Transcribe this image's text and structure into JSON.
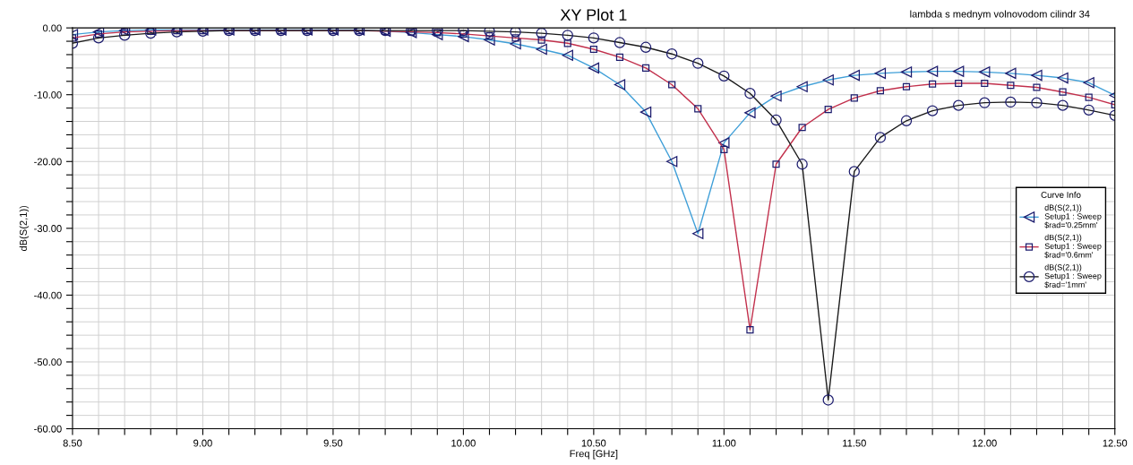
{
  "chart_data": {
    "type": "line",
    "title": "XY Plot 1",
    "xlabel": "Freq [GHz]",
    "ylabel": "dB(S(2,1))",
    "legend_title": "Curve Info",
    "legend": "right",
    "grid": true,
    "line_style": "solid",
    "annotations": [
      "lambda s mednym volnovodom cilindr 34"
    ],
    "x": [
      8.5,
      8.6,
      8.7,
      8.8,
      8.9,
      9.0,
      9.1,
      9.2,
      9.3,
      9.4,
      9.5,
      9.6,
      9.7,
      9.8,
      9.9,
      10.0,
      10.1,
      10.2,
      10.3,
      10.4,
      10.5,
      10.6,
      10.7,
      10.8,
      10.9,
      11.0,
      11.1,
      11.2,
      11.3,
      11.4,
      11.5,
      11.6,
      11.7,
      11.8,
      11.9,
      12.0,
      12.1,
      12.2,
      12.3,
      12.4,
      12.5
    ],
    "xlim": [
      8.5,
      12.5
    ],
    "xticks": [
      {
        "value": 8.5,
        "label": "8.50"
      },
      {
        "value": 8.6,
        "label": null
      },
      {
        "value": 8.7,
        "label": null
      },
      {
        "value": 8.8,
        "label": null
      },
      {
        "value": 8.9,
        "label": null
      },
      {
        "value": 9.0,
        "label": "9.00"
      },
      {
        "value": 9.1,
        "label": null
      },
      {
        "value": 9.2,
        "label": null
      },
      {
        "value": 9.3,
        "label": null
      },
      {
        "value": 9.4,
        "label": null
      },
      {
        "value": 9.5,
        "label": "9.50"
      },
      {
        "value": 9.6,
        "label": null
      },
      {
        "value": 9.7,
        "label": null
      },
      {
        "value": 9.8,
        "label": null
      },
      {
        "value": 9.9,
        "label": null
      },
      {
        "value": 10.0,
        "label": "10.00"
      },
      {
        "value": 10.1,
        "label": null
      },
      {
        "value": 10.2,
        "label": null
      },
      {
        "value": 10.3,
        "label": null
      },
      {
        "value": 10.4,
        "label": null
      },
      {
        "value": 10.5,
        "label": "10.50"
      },
      {
        "value": 10.6,
        "label": null
      },
      {
        "value": 10.7,
        "label": null
      },
      {
        "value": 10.8,
        "label": null
      },
      {
        "value": 10.9,
        "label": null
      },
      {
        "value": 11.0,
        "label": "11.00"
      },
      {
        "value": 11.1,
        "label": null
      },
      {
        "value": 11.2,
        "label": null
      },
      {
        "value": 11.3,
        "label": null
      },
      {
        "value": 11.4,
        "label": null
      },
      {
        "value": 11.5,
        "label": "11.50"
      },
      {
        "value": 11.6,
        "label": null
      },
      {
        "value": 11.7,
        "label": null
      },
      {
        "value": 11.8,
        "label": null
      },
      {
        "value": 11.9,
        "label": null
      },
      {
        "value": 12.0,
        "label": "12.00"
      },
      {
        "value": 12.1,
        "label": null
      },
      {
        "value": 12.2,
        "label": null
      },
      {
        "value": 12.3,
        "label": null
      },
      {
        "value": 12.4,
        "label": null
      },
      {
        "value": 12.5,
        "label": "12.50"
      }
    ],
    "ylim": [
      -60,
      0
    ],
    "yticks": [
      {
        "value": -60,
        "label": "-60.00"
      },
      {
        "value": -58,
        "label": null
      },
      {
        "value": -56,
        "label": null
      },
      {
        "value": -54,
        "label": null
      },
      {
        "value": -52,
        "label": null
      },
      {
        "value": -50,
        "label": "-50.00"
      },
      {
        "value": -48,
        "label": null
      },
      {
        "value": -46,
        "label": null
      },
      {
        "value": -44,
        "label": null
      },
      {
        "value": -42,
        "label": null
      },
      {
        "value": -40,
        "label": "-40.00"
      },
      {
        "value": -38,
        "label": null
      },
      {
        "value": -36,
        "label": null
      },
      {
        "value": -34,
        "label": null
      },
      {
        "value": -32,
        "label": null
      },
      {
        "value": -30,
        "label": "-30.00"
      },
      {
        "value": -28,
        "label": null
      },
      {
        "value": -26,
        "label": null
      },
      {
        "value": -24,
        "label": null
      },
      {
        "value": -22,
        "label": null
      },
      {
        "value": -20,
        "label": "-20.00"
      },
      {
        "value": -18,
        "label": null
      },
      {
        "value": -16,
        "label": null
      },
      {
        "value": -14,
        "label": null
      },
      {
        "value": -12,
        "label": null
      },
      {
        "value": -10,
        "label": "-10.00"
      },
      {
        "value": -8,
        "label": null
      },
      {
        "value": -6,
        "label": null
      },
      {
        "value": -4,
        "label": null
      },
      {
        "value": -2,
        "label": null
      },
      {
        "value": 0,
        "label": "0.00"
      }
    ],
    "series": [
      {
        "name": "dB(S(2,1))\nSetup1 : Sweep\n$rad='0.25mm'",
        "color": "#3f9fd8",
        "marker": "triangle",
        "values": [
          -1.0,
          -0.6,
          -0.4,
          -0.3,
          -0.3,
          -0.3,
          -0.3,
          -0.3,
          -0.3,
          -0.3,
          -0.3,
          -0.3,
          -0.5,
          -0.7,
          -1.0,
          -1.3,
          -1.8,
          -2.4,
          -3.2,
          -4.1,
          -6.0,
          -8.5,
          -12.6,
          -20.0,
          -30.8,
          -17.2,
          -12.7,
          -10.2,
          -8.8,
          -7.8,
          -7.1,
          -6.8,
          -6.6,
          -6.5,
          -6.5,
          -6.6,
          -6.8,
          -7.1,
          -7.5,
          -8.2,
          -10.1
        ]
      },
      {
        "name": "dB(S(2,1))\nSetup1 : Sweep\n$rad='0.6mm'",
        "color": "#c2304c",
        "marker": "square",
        "values": [
          -1.5,
          -0.9,
          -0.6,
          -0.5,
          -0.4,
          -0.4,
          -0.4,
          -0.4,
          -0.4,
          -0.4,
          -0.4,
          -0.4,
          -0.5,
          -0.6,
          -0.7,
          -0.9,
          -1.2,
          -1.5,
          -1.8,
          -2.3,
          -3.2,
          -4.4,
          -6.0,
          -8.5,
          -12.1,
          -18.2,
          -45.2,
          -20.4,
          -14.9,
          -12.2,
          -10.5,
          -9.4,
          -8.8,
          -8.4,
          -8.3,
          -8.3,
          -8.6,
          -8.9,
          -9.6,
          -10.4,
          -11.5
        ]
      },
      {
        "name": "dB(S(2,1))\nSetup1 : Sweep\n$rad='1mm'",
        "color": "#1a1a1a",
        "marker": "circle",
        "values": [
          -2.3,
          -1.5,
          -1.1,
          -0.8,
          -0.6,
          -0.5,
          -0.4,
          -0.4,
          -0.4,
          -0.4,
          -0.4,
          -0.4,
          -0.4,
          -0.4,
          -0.4,
          -0.4,
          -0.5,
          -0.6,
          -0.8,
          -1.1,
          -1.5,
          -2.2,
          -2.9,
          -3.9,
          -5.3,
          -7.2,
          -9.8,
          -13.8,
          -20.4,
          -55.7,
          -21.5,
          -16.4,
          -13.9,
          -12.4,
          -11.6,
          -11.2,
          -11.1,
          -11.2,
          -11.6,
          -12.3,
          -13.1
        ]
      }
    ]
  }
}
